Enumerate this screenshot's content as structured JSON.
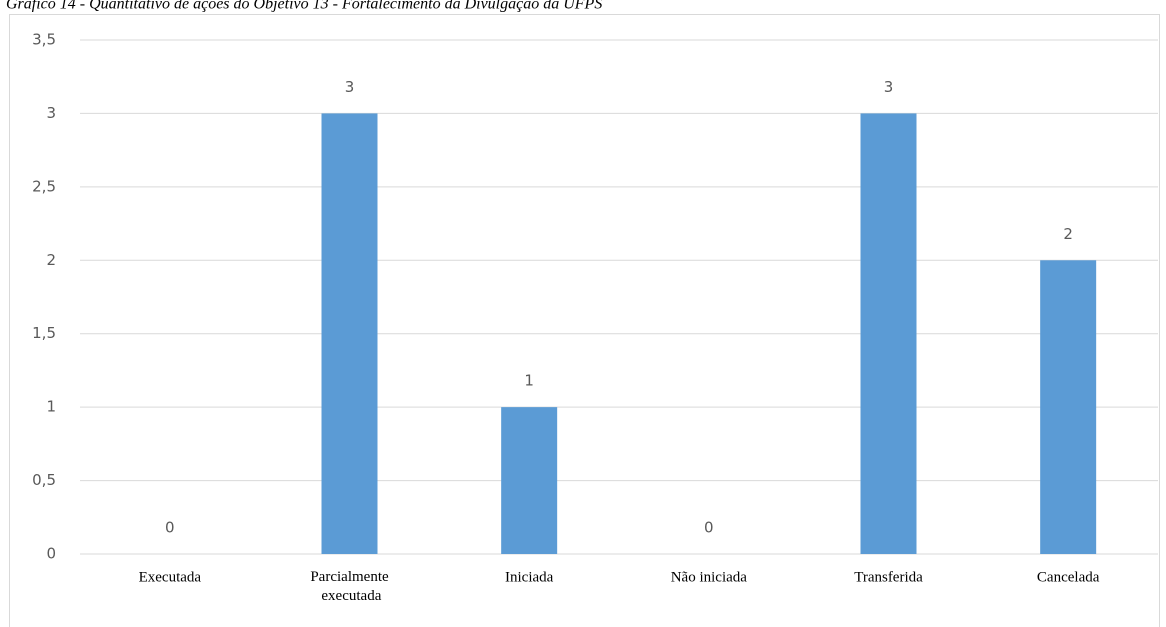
{
  "chart_data": {
    "type": "bar",
    "title": "Gráfico 14 - Quantitativo de ações do Objetivo 13 - Fortalecimento da Divulgação da UFPS",
    "categories": [
      "Executada",
      "Parcialmente executada",
      "Iniciada",
      "Não iniciada",
      "Transferida",
      "Cancelada"
    ],
    "values": [
      0,
      3,
      1,
      0,
      3,
      2
    ],
    "color": "#5b9bd5",
    "ylim": [
      0,
      3.5
    ],
    "yticks": [
      0,
      {
        "value": 0.5,
        "label": "0,5"
      },
      1,
      {
        "value": 1.5,
        "label": "1,5"
      },
      2,
      {
        "value": 2.5,
        "label": "2,5"
      },
      3,
      {
        "value": 3.5,
        "label": "3,5"
      }
    ],
    "grid": true
  }
}
